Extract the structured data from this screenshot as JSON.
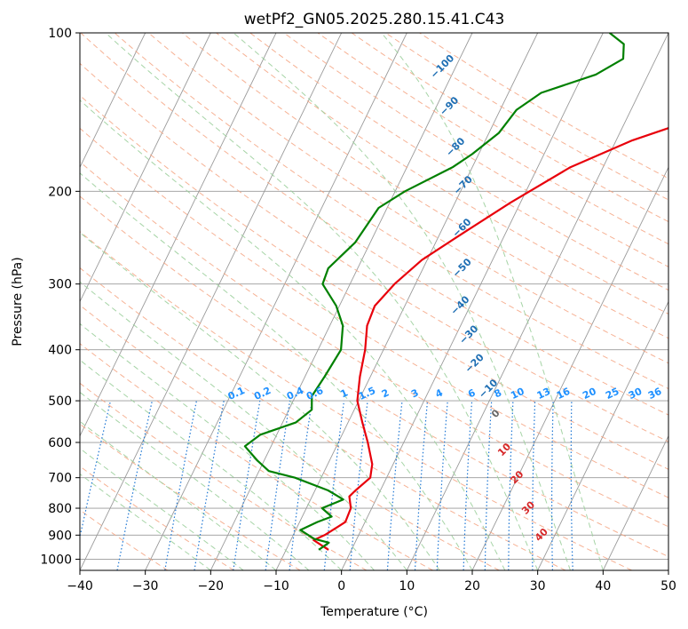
{
  "chart_data": {
    "type": "skew-t",
    "title": "wetPf2_GN05.2025.280.15.41.C43",
    "xlabel": "Temperature (°C)",
    "ylabel": "Pressure (hPa)",
    "xlim": [
      -40,
      50
    ],
    "ylim": [
      1050,
      100
    ],
    "pressure_scale": "log",
    "grid": true,
    "x_ticks": [
      "−40",
      "−30",
      "−20",
      "−10",
      "0",
      "10",
      "20",
      "30",
      "40",
      "50"
    ],
    "y_ticks": [
      {
        "p": 100,
        "label": "100"
      },
      {
        "p": 200,
        "label": "200"
      },
      {
        "p": 300,
        "label": "300"
      },
      {
        "p": 400,
        "label": "400"
      },
      {
        "p": 500,
        "label": "500"
      },
      {
        "p": 600,
        "label": "600"
      },
      {
        "p": 700,
        "label": "700"
      },
      {
        "p": 800,
        "label": "800"
      },
      {
        "p": 900,
        "label": "900"
      },
      {
        "p": 1000,
        "label": "1000"
      }
    ],
    "series": [
      {
        "color": "#e8000b",
        "points": [
          {
            "p": 960,
            "t": -3.5
          },
          {
            "p": 920,
            "t": -6.5
          },
          {
            "p": 900,
            "t": -5.2
          },
          {
            "p": 850,
            "t": -3.0
          },
          {
            "p": 800,
            "t": -3.2
          },
          {
            "p": 760,
            "t": -4.3
          },
          {
            "p": 740,
            "t": -3.8
          },
          {
            "p": 700,
            "t": -2.5
          },
          {
            "p": 660,
            "t": -3.2
          },
          {
            "p": 600,
            "t": -5.5
          },
          {
            "p": 550,
            "t": -7.8
          },
          {
            "p": 500,
            "t": -10.2
          },
          {
            "p": 450,
            "t": -11.6
          },
          {
            "p": 400,
            "t": -12.8
          },
          {
            "p": 360,
            "t": -14.3
          },
          {
            "p": 330,
            "t": -14.6
          },
          {
            "p": 300,
            "t": -13.2
          },
          {
            "p": 270,
            "t": -10.8
          },
          {
            "p": 240,
            "t": -6.5
          },
          {
            "p": 210,
            "t": -1.5
          },
          {
            "p": 180,
            "t": 5.0
          },
          {
            "p": 160,
            "t": 12.5
          },
          {
            "p": 140,
            "t": 24.0
          },
          {
            "p": 120,
            "t": 37.0
          },
          {
            "p": 100,
            "t": 50.0
          }
        ]
      },
      {
        "color": "#008000",
        "points": [
          {
            "p": 960,
            "t": -5.0
          },
          {
            "p": 930,
            "t": -4.0
          },
          {
            "p": 915,
            "t": -6.5
          },
          {
            "p": 880,
            "t": -9.3
          },
          {
            "p": 850,
            "t": -7.3
          },
          {
            "p": 830,
            "t": -5.5
          },
          {
            "p": 800,
            "t": -7.6
          },
          {
            "p": 770,
            "t": -5.0
          },
          {
            "p": 740,
            "t": -8.0
          },
          {
            "p": 700,
            "t": -14.0
          },
          {
            "p": 680,
            "t": -18.5
          },
          {
            "p": 650,
            "t": -21.0
          },
          {
            "p": 610,
            "t": -24.0
          },
          {
            "p": 580,
            "t": -22.5
          },
          {
            "p": 550,
            "t": -18.0
          },
          {
            "p": 520,
            "t": -16.5
          },
          {
            "p": 490,
            "t": -17.5
          },
          {
            "p": 450,
            "t": -17.0
          },
          {
            "p": 400,
            "t": -16.5
          },
          {
            "p": 360,
            "t": -18.0
          },
          {
            "p": 330,
            "t": -20.5
          },
          {
            "p": 300,
            "t": -24.2
          },
          {
            "p": 280,
            "t": -24.5
          },
          {
            "p": 250,
            "t": -22.3
          },
          {
            "p": 215,
            "t": -21.3
          },
          {
            "p": 200,
            "t": -18.5
          },
          {
            "p": 180,
            "t": -13.0
          },
          {
            "p": 170,
            "t": -11.0
          },
          {
            "p": 155,
            "t": -8.5
          },
          {
            "p": 140,
            "t": -7.5
          },
          {
            "p": 130,
            "t": -5.0
          },
          {
            "p": 120,
            "t": 2.0
          },
          {
            "p": 112,
            "t": 5.0
          },
          {
            "p": 105,
            "t": 4.0
          },
          {
            "p": 100,
            "t": 1.0
          }
        ]
      }
    ],
    "dry_adiabat_labels": [
      "−100",
      "−90",
      "−80",
      "−70",
      "−60",
      "−50",
      "−40",
      "−30",
      "−20",
      "−10",
      "0",
      "10",
      "20",
      "30",
      "40"
    ],
    "dry_adiabat_label_positions": [
      {
        "p": 116,
        "t": -22
      },
      {
        "p": 138,
        "t": -18
      },
      {
        "p": 165,
        "t": -14
      },
      {
        "p": 195,
        "t": -10
      },
      {
        "p": 235,
        "t": -7
      },
      {
        "p": 280,
        "t": -4
      },
      {
        "p": 330,
        "t": -1.5
      },
      {
        "p": 375,
        "t": 2
      },
      {
        "p": 425,
        "t": 5
      },
      {
        "p": 475,
        "t": 9
      },
      {
        "p": 530,
        "t": 12
      },
      {
        "p": 620,
        "t": 16
      },
      {
        "p": 700,
        "t": 20
      },
      {
        "p": 800,
        "t": 24
      },
      {
        "p": 900,
        "t": 28
      }
    ],
    "mixing_ratio_labels": [
      "0.1",
      "0.2",
      "0.4",
      "0.6",
      "1",
      "1.5",
      "2",
      "3",
      "4",
      "6",
      "8",
      "10",
      "13",
      "16",
      "20",
      "25",
      "30",
      "36"
    ],
    "mixing_ratio_label_temps_at_500": [
      -28.5,
      -24.5,
      -19.5,
      -16.5,
      -12,
      -8.5,
      -5.7,
      -1.2,
      2.5,
      7.5,
      11.5,
      14.5,
      18.5,
      21.5,
      25.5,
      29,
      32.5,
      35.5
    ],
    "colors": {
      "temperature": "#e8000b",
      "dewpoint": "#008000",
      "isotherm": "#9a9a9a",
      "isobar": "#9a9a9a",
      "dry_adiabat": "#f4a582",
      "moist_adiabat": "#9ccf9c",
      "mixing_ratio": "#1f77d4",
      "dry_adiabat_label_blue": "#1f6fb4",
      "dry_adiabat_label_red": "#d62728",
      "dry_adiabat_label_zero": "#666666",
      "mixing_label": "#1e90ff"
    }
  }
}
